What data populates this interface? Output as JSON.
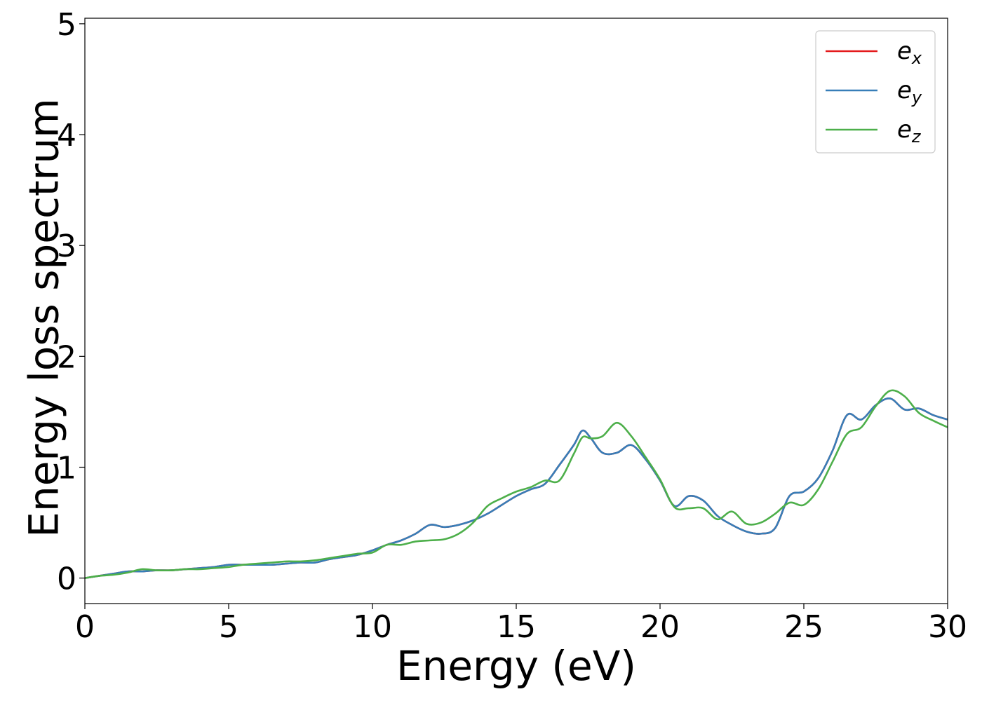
{
  "chart_data": {
    "type": "line",
    "xlabel": "Energy (eV)",
    "ylabel": "Energy loss spectrum",
    "xlim": [
      0,
      30
    ],
    "ylim": [
      -0.23,
      5.05
    ],
    "xticks": [
      0,
      5,
      10,
      15,
      20,
      25,
      30
    ],
    "xtick_labels": [
      "0",
      "5",
      "10",
      "15",
      "20",
      "25",
      "30"
    ],
    "yticks": [
      0,
      1,
      2,
      3,
      4,
      5
    ],
    "ytick_labels": [
      "0",
      "1",
      "2",
      "3",
      "4",
      "5"
    ],
    "grid": false,
    "legend_position": "top-right",
    "series": [
      {
        "name": "e",
        "sub": "x",
        "color": "#e41a1c",
        "x": [
          0,
          0.5,
          1,
          1.5,
          2,
          2.5,
          3,
          3.5,
          4,
          4.5,
          5,
          5.5,
          6,
          6.5,
          7,
          7.5,
          8,
          8.5,
          9,
          9.5,
          10,
          10.5,
          11,
          11.5,
          12,
          12.5,
          13,
          13.5,
          14,
          14.5,
          15,
          15.5,
          16,
          16.5,
          17,
          17.3,
          17.6,
          18,
          18.5,
          19,
          19.5,
          20,
          20.5,
          21,
          21.5,
          22,
          22.5,
          23,
          23.5,
          24,
          24.5,
          25,
          25.5,
          26,
          26.5,
          27,
          27.5,
          28,
          28.5,
          29,
          29.5,
          30
        ],
        "y": [
          0,
          0.02,
          0.04,
          0.06,
          0.06,
          0.07,
          0.07,
          0.08,
          0.09,
          0.1,
          0.12,
          0.12,
          0.12,
          0.12,
          0.13,
          0.14,
          0.14,
          0.17,
          0.19,
          0.21,
          0.25,
          0.3,
          0.34,
          0.4,
          0.48,
          0.46,
          0.48,
          0.52,
          0.58,
          0.66,
          0.74,
          0.8,
          0.85,
          1.02,
          1.2,
          1.33,
          1.26,
          1.13,
          1.13,
          1.2,
          1.07,
          0.88,
          0.65,
          0.74,
          0.7,
          0.56,
          0.48,
          0.42,
          0.4,
          0.45,
          0.74,
          0.78,
          0.9,
          1.15,
          1.47,
          1.43,
          1.56,
          1.62,
          1.52,
          1.53,
          1.47,
          1.43
        ]
      },
      {
        "name": "e",
        "sub": "y",
        "color": "#377eb8",
        "x": [
          0,
          0.5,
          1,
          1.5,
          2,
          2.5,
          3,
          3.5,
          4,
          4.5,
          5,
          5.5,
          6,
          6.5,
          7,
          7.5,
          8,
          8.5,
          9,
          9.5,
          10,
          10.5,
          11,
          11.5,
          12,
          12.5,
          13,
          13.5,
          14,
          14.5,
          15,
          15.5,
          16,
          16.5,
          17,
          17.3,
          17.6,
          18,
          18.5,
          19,
          19.5,
          20,
          20.5,
          21,
          21.5,
          22,
          22.5,
          23,
          23.5,
          24,
          24.5,
          25,
          25.5,
          26,
          26.5,
          27,
          27.5,
          28,
          28.5,
          29,
          29.5,
          30
        ],
        "y": [
          0,
          0.02,
          0.04,
          0.06,
          0.06,
          0.07,
          0.07,
          0.08,
          0.09,
          0.1,
          0.12,
          0.12,
          0.12,
          0.12,
          0.13,
          0.14,
          0.14,
          0.17,
          0.19,
          0.21,
          0.25,
          0.3,
          0.34,
          0.4,
          0.48,
          0.46,
          0.48,
          0.52,
          0.58,
          0.66,
          0.74,
          0.8,
          0.85,
          1.02,
          1.2,
          1.33,
          1.26,
          1.13,
          1.13,
          1.2,
          1.07,
          0.88,
          0.65,
          0.74,
          0.7,
          0.56,
          0.48,
          0.42,
          0.4,
          0.45,
          0.74,
          0.78,
          0.9,
          1.15,
          1.47,
          1.43,
          1.56,
          1.62,
          1.52,
          1.53,
          1.47,
          1.43
        ]
      },
      {
        "name": "e",
        "sub": "z",
        "color": "#4daf4a",
        "x": [
          0,
          0.5,
          1,
          1.5,
          2,
          2.5,
          3,
          3.5,
          4,
          4.5,
          5,
          5.5,
          6,
          6.5,
          7,
          7.5,
          8,
          8.5,
          9,
          9.5,
          10,
          10.5,
          11,
          11.5,
          12,
          12.5,
          13,
          13.5,
          14,
          14.5,
          15,
          15.5,
          16,
          16.5,
          17,
          17.3,
          17.6,
          18,
          18.5,
          19,
          19.5,
          20,
          20.5,
          21,
          21.5,
          22,
          22.5,
          23,
          23.5,
          24,
          24.5,
          25,
          25.5,
          26,
          26.5,
          27,
          27.5,
          28,
          28.5,
          29,
          29.5,
          30
        ],
        "y": [
          0,
          0.02,
          0.03,
          0.05,
          0.08,
          0.07,
          0.07,
          0.08,
          0.08,
          0.09,
          0.1,
          0.12,
          0.13,
          0.14,
          0.15,
          0.15,
          0.16,
          0.18,
          0.2,
          0.22,
          0.23,
          0.3,
          0.3,
          0.33,
          0.34,
          0.35,
          0.4,
          0.5,
          0.65,
          0.72,
          0.78,
          0.82,
          0.88,
          0.88,
          1.12,
          1.27,
          1.26,
          1.28,
          1.4,
          1.28,
          1.09,
          0.89,
          0.64,
          0.63,
          0.63,
          0.53,
          0.6,
          0.49,
          0.5,
          0.58,
          0.68,
          0.66,
          0.8,
          1.05,
          1.3,
          1.36,
          1.55,
          1.69,
          1.64,
          1.49,
          1.42,
          1.36
        ]
      }
    ]
  }
}
